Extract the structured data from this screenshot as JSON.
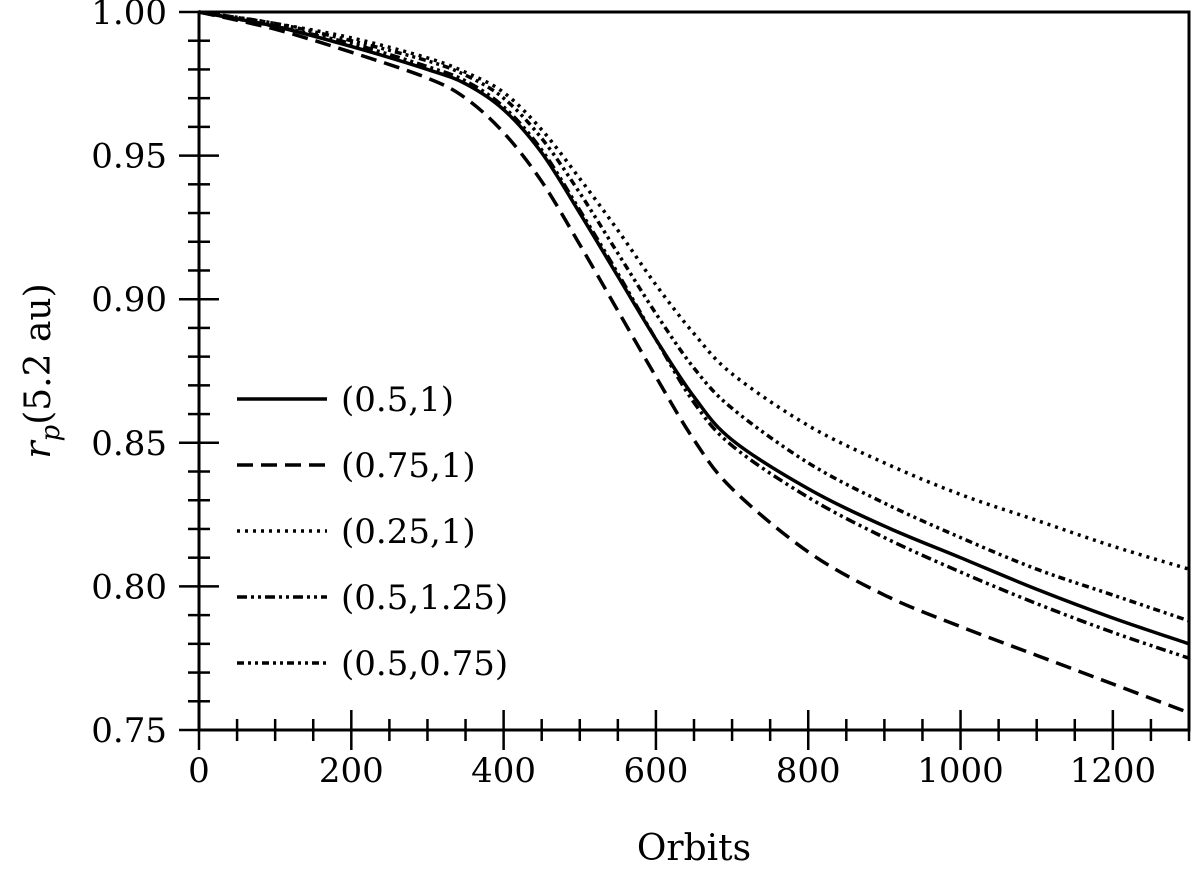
{
  "chart_data": {
    "type": "line",
    "xlabel": "Orbits",
    "ylabel": "r_p(5.2 au)",
    "ylabel_parts": {
      "var": "r",
      "sub": "p",
      "rest": "(5.2 au)"
    },
    "xlim": [
      0,
      1300
    ],
    "ylim": [
      0.75,
      1.0
    ],
    "xticks": [
      0,
      200,
      400,
      600,
      800,
      1000,
      1200
    ],
    "xtick_labels": [
      "0",
      "200",
      "400",
      "600",
      "800",
      "1000",
      "1200"
    ],
    "yticks": [
      0.75,
      0.8,
      0.85,
      0.9,
      0.95,
      1.0
    ],
    "ytick_labels": [
      "0.75",
      "0.80",
      "0.85",
      "0.90",
      "0.95",
      "1.00"
    ],
    "grid": false,
    "legend_position": "center-left",
    "x": [
      0,
      100,
      200,
      300,
      350,
      400,
      450,
      500,
      550,
      600,
      650,
      700,
      800,
      900,
      1000,
      1100,
      1200,
      1300
    ],
    "series": [
      {
        "name": "(0.5,1)",
        "style": "solid",
        "values": [
          1.0,
          0.995,
          0.988,
          0.98,
          0.975,
          0.966,
          0.951,
          0.93,
          0.908,
          0.886,
          0.866,
          0.851,
          0.834,
          0.821,
          0.81,
          0.799,
          0.789,
          0.78
        ]
      },
      {
        "name": "(0.75,1)",
        "style": "dashed",
        "values": [
          1.0,
          0.994,
          0.986,
          0.977,
          0.97,
          0.958,
          0.941,
          0.919,
          0.896,
          0.873,
          0.851,
          0.834,
          0.812,
          0.797,
          0.786,
          0.776,
          0.766,
          0.756
        ]
      },
      {
        "name": "(0.25,1)",
        "style": "dotted",
        "values": [
          1.0,
          0.996,
          0.991,
          0.984,
          0.979,
          0.972,
          0.959,
          0.942,
          0.924,
          0.905,
          0.888,
          0.874,
          0.856,
          0.843,
          0.832,
          0.823,
          0.814,
          0.806
        ]
      },
      {
        "name": "(0.5,1.25)",
        "style": "dash-dot-dot",
        "values": [
          1.0,
          0.995,
          0.989,
          0.981,
          0.976,
          0.967,
          0.952,
          0.931,
          0.909,
          0.886,
          0.864,
          0.849,
          0.831,
          0.817,
          0.805,
          0.794,
          0.784,
          0.775
        ]
      },
      {
        "name": "(0.5,0.75)",
        "style": "dash-dot-dot-fine",
        "values": [
          1.0,
          0.996,
          0.99,
          0.983,
          0.978,
          0.97,
          0.956,
          0.937,
          0.916,
          0.895,
          0.876,
          0.862,
          0.843,
          0.829,
          0.817,
          0.806,
          0.797,
          0.788
        ]
      }
    ]
  }
}
